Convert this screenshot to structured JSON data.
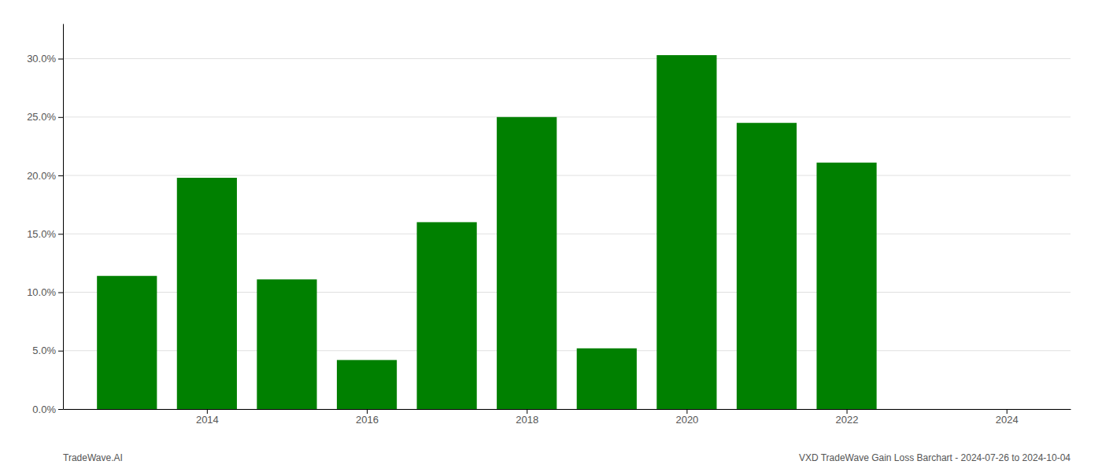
{
  "chart_data": {
    "type": "bar",
    "title": "VXD TradeWave Gain Loss Barchart - 2024-07-26 to 2024-10-04",
    "annotations": [
      "TradeWave.AI"
    ],
    "x": [
      2013,
      2014,
      2015,
      2016,
      2017,
      2018,
      2019,
      2020,
      2021,
      2022,
      2023
    ],
    "values": [
      0.114,
      0.198,
      0.111,
      0.042,
      0.16,
      0.25,
      0.052,
      0.303,
      0.245,
      0.211,
      0.0
    ],
    "color": "#008000",
    "xlim": [
      2012.2,
      2024.8
    ],
    "xticks": [
      2014,
      2016,
      2018,
      2020,
      2022,
      2024
    ],
    "ylim": [
      0,
      0.33
    ],
    "yticks": [
      {
        "value": 0.0,
        "label": "0.0%"
      },
      {
        "value": 0.05,
        "label": "5.0%"
      },
      {
        "value": 0.1,
        "label": "10.0%"
      },
      {
        "value": 0.15,
        "label": "15.0%"
      },
      {
        "value": 0.2,
        "label": "20.0%"
      },
      {
        "value": 0.25,
        "label": "25.0%"
      },
      {
        "value": 0.3,
        "label": "30.0%"
      }
    ],
    "grid": "y"
  }
}
